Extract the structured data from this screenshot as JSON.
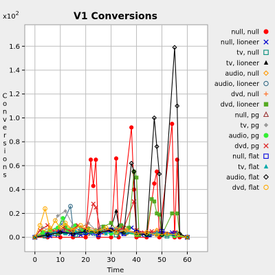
{
  "chart_data": {
    "type": "line",
    "title": "V1 Conversions",
    "xlabel": "Time",
    "ylabel": "Conversions",
    "y_multiplier": "x10",
    "y_multiplier_exp": "2",
    "xlim": [
      -4,
      68
    ],
    "ylim": [
      -0.12,
      1.78
    ],
    "xticks": [
      0,
      10,
      20,
      30,
      40,
      50,
      60
    ],
    "yticks": [
      0.0,
      0.2,
      0.4,
      0.6,
      0.8,
      1.0,
      1.2,
      1.4,
      1.6
    ],
    "ytick_labels": [
      "0.0",
      "0.2",
      "0.4",
      "0.6",
      "0.8",
      "1.0",
      "1.2",
      "1.4",
      "1.6"
    ],
    "grid": true,
    "legend_position": "right",
    "series": [
      {
        "name": "null, null",
        "color": "#ff0000",
        "marker": "circle-filled",
        "points": [
          [
            0,
            0
          ],
          [
            5,
            0
          ],
          [
            10,
            0
          ],
          [
            15,
            0
          ],
          [
            20,
            0
          ],
          [
            22,
            0.65
          ],
          [
            23,
            0.43
          ],
          [
            24,
            0.65
          ],
          [
            25,
            0
          ],
          [
            30,
            0
          ],
          [
            32,
            0.66
          ],
          [
            33,
            0
          ],
          [
            38,
            0.92
          ],
          [
            39,
            0.4
          ],
          [
            40,
            0
          ],
          [
            44,
            0
          ],
          [
            47,
            0.45
          ],
          [
            48,
            0.55
          ],
          [
            49,
            0
          ],
          [
            54,
            0.95
          ],
          [
            55,
            0
          ],
          [
            56,
            0.65
          ],
          [
            57,
            0
          ],
          [
            60,
            0
          ]
        ]
      },
      {
        "name": "null, lioneer",
        "color": "#0000cc",
        "marker": "x",
        "points": [
          [
            0,
            0
          ],
          [
            3,
            0.02
          ],
          [
            6,
            0.01
          ],
          [
            9,
            0.02
          ],
          [
            12,
            0.05
          ],
          [
            14,
            0.03
          ],
          [
            18,
            0.02
          ],
          [
            22,
            0.03
          ],
          [
            26,
            0.06
          ],
          [
            30,
            0.04
          ],
          [
            33,
            0.06
          ],
          [
            35,
            0.03
          ],
          [
            38,
            0.08
          ],
          [
            42,
            0.02
          ],
          [
            46,
            0.03
          ],
          [
            50,
            0.02
          ],
          [
            54,
            0.04
          ],
          [
            56,
            0.02
          ],
          [
            60,
            0
          ]
        ]
      },
      {
        "name": "tv, null",
        "color": "#008c7a",
        "marker": "square-open",
        "points": [
          [
            0,
            0
          ],
          [
            4,
            0.01
          ],
          [
            8,
            0.03
          ],
          [
            12,
            0.04
          ],
          [
            16,
            0.02
          ],
          [
            20,
            0.05
          ],
          [
            24,
            0.03
          ],
          [
            28,
            0.06
          ],
          [
            32,
            0.02
          ],
          [
            36,
            0.04
          ],
          [
            40,
            0.03
          ],
          [
            44,
            0.02
          ],
          [
            48,
            0.03
          ],
          [
            52,
            0.01
          ],
          [
            56,
            0.02
          ],
          [
            60,
            0
          ]
        ]
      },
      {
        "name": "tv, lioneer",
        "color": "#000000",
        "marker": "triangle-filled",
        "points": [
          [
            0,
            0
          ],
          [
            5,
            0.02
          ],
          [
            10,
            0.04
          ],
          [
            15,
            0.06
          ],
          [
            20,
            0.03
          ],
          [
            25,
            0.05
          ],
          [
            30,
            0.08
          ],
          [
            32,
            0.22
          ],
          [
            33,
            0.1
          ],
          [
            36,
            0.04
          ],
          [
            40,
            0.05
          ],
          [
            45,
            0.02
          ],
          [
            50,
            0.03
          ],
          [
            55,
            0.02
          ],
          [
            60,
            0
          ]
        ]
      },
      {
        "name": "audio, null",
        "color": "#ff9900",
        "marker": "diamond-open",
        "points": [
          [
            0,
            0
          ],
          [
            3,
            0.05
          ],
          [
            6,
            0.08
          ],
          [
            9,
            0.04
          ],
          [
            12,
            0.1
          ],
          [
            15,
            0.06
          ],
          [
            18,
            0.05
          ],
          [
            21,
            0.03
          ],
          [
            24,
            0.06
          ],
          [
            27,
            0.04
          ],
          [
            30,
            0.05
          ],
          [
            33,
            0.07
          ],
          [
            36,
            0.03
          ],
          [
            40,
            0.04
          ],
          [
            44,
            0.02
          ],
          [
            48,
            0.06
          ],
          [
            52,
            0.03
          ],
          [
            56,
            0.04
          ],
          [
            60,
            0
          ]
        ]
      },
      {
        "name": "audio, lioneer",
        "color": "#336b87",
        "marker": "circle-open",
        "points": [
          [
            0,
            0
          ],
          [
            4,
            0.03
          ],
          [
            8,
            0.06
          ],
          [
            11,
            0.12
          ],
          [
            14,
            0.26
          ],
          [
            15,
            0.08
          ],
          [
            18,
            0.06
          ],
          [
            22,
            0.04
          ],
          [
            26,
            0.08
          ],
          [
            30,
            0.05
          ],
          [
            34,
            0.1
          ],
          [
            36,
            0.04
          ],
          [
            40,
            0.05
          ],
          [
            44,
            0.02
          ],
          [
            48,
            0.03
          ],
          [
            52,
            0.02
          ],
          [
            56,
            0.03
          ],
          [
            60,
            0
          ]
        ]
      },
      {
        "name": "dvd, null",
        "color": "#ff7733",
        "marker": "plus",
        "points": [
          [
            0,
            0
          ],
          [
            4,
            0.04
          ],
          [
            8,
            0.06
          ],
          [
            12,
            0.05
          ],
          [
            16,
            0.08
          ],
          [
            20,
            0.1
          ],
          [
            24,
            0.06
          ],
          [
            28,
            0.05
          ],
          [
            32,
            0.08
          ],
          [
            36,
            0.06
          ],
          [
            40,
            0.04
          ],
          [
            44,
            0.03
          ],
          [
            48,
            0.05
          ],
          [
            52,
            0.02
          ],
          [
            56,
            0.03
          ],
          [
            60,
            0
          ]
        ]
      },
      {
        "name": "dvd, lioneer",
        "color": "#55aa22",
        "marker": "square-filled",
        "points": [
          [
            0,
            0
          ],
          [
            3,
            0.02
          ],
          [
            6,
            0.05
          ],
          [
            9,
            0.03
          ],
          [
            12,
            0.08
          ],
          [
            15,
            0.06
          ],
          [
            18,
            0.04
          ],
          [
            21,
            0.07
          ],
          [
            24,
            0.05
          ],
          [
            27,
            0.09
          ],
          [
            30,
            0.12
          ],
          [
            32,
            0.06
          ],
          [
            34,
            0.1
          ],
          [
            37,
            0.08
          ],
          [
            39,
            0.55
          ],
          [
            40,
            0.5
          ],
          [
            41,
            0.02
          ],
          [
            44,
            0.03
          ],
          [
            46,
            0.32
          ],
          [
            47,
            0.3
          ],
          [
            48,
            0.2
          ],
          [
            49,
            0.19
          ],
          [
            50,
            0.02
          ],
          [
            54,
            0.2
          ],
          [
            56,
            0.2
          ],
          [
            57,
            0.02
          ],
          [
            60,
            0
          ]
        ]
      },
      {
        "name": "null, pg",
        "color": "#993333",
        "marker": "triangle-open",
        "points": [
          [
            0,
            0
          ],
          [
            5,
            0.03
          ],
          [
            10,
            0.05
          ],
          [
            15,
            0.04
          ],
          [
            20,
            0.06
          ],
          [
            25,
            0.05
          ],
          [
            30,
            0.07
          ],
          [
            35,
            0.04
          ],
          [
            40,
            0.05
          ],
          [
            45,
            0.03
          ],
          [
            50,
            0.04
          ],
          [
            55,
            0.02
          ],
          [
            60,
            0
          ]
        ]
      },
      {
        "name": "tv, pg",
        "color": "#999999",
        "marker": "diamond-filled",
        "points": [
          [
            0,
            0
          ],
          [
            3,
            0.08
          ],
          [
            6,
            0.06
          ],
          [
            9,
            0.18
          ],
          [
            12,
            0.22
          ],
          [
            15,
            0.1
          ],
          [
            18,
            0.08
          ],
          [
            21,
            0.12
          ],
          [
            24,
            0.06
          ],
          [
            27,
            0.05
          ],
          [
            30,
            0.08
          ],
          [
            34,
            0.06
          ],
          [
            38,
            0.04
          ],
          [
            42,
            0.03
          ],
          [
            46,
            0.02
          ],
          [
            50,
            0.03
          ],
          [
            55,
            0.02
          ],
          [
            60,
            0
          ]
        ]
      },
      {
        "name": "audio, pg",
        "color": "#33ee33",
        "marker": "circle-filled",
        "points": [
          [
            0,
            0
          ],
          [
            3,
            0.04
          ],
          [
            6,
            0.06
          ],
          [
            9,
            0.08
          ],
          [
            11,
            0.16
          ],
          [
            13,
            0.06
          ],
          [
            16,
            0.1
          ],
          [
            19,
            0.06
          ],
          [
            22,
            0.04
          ],
          [
            26,
            0.05
          ],
          [
            30,
            0.03
          ],
          [
            35,
            0.04
          ],
          [
            40,
            0.02
          ],
          [
            45,
            0.03
          ],
          [
            50,
            0.02
          ],
          [
            55,
            0.01
          ],
          [
            60,
            0
          ]
        ]
      },
      {
        "name": "dvd, pg",
        "color": "#dd2222",
        "marker": "x",
        "points": [
          [
            0,
            0
          ],
          [
            2,
            0.06
          ],
          [
            5,
            0.1
          ],
          [
            8,
            0.04
          ],
          [
            11,
            0.08
          ],
          [
            14,
            0.05
          ],
          [
            17,
            0.1
          ],
          [
            20,
            0.06
          ],
          [
            23,
            0.28
          ],
          [
            24,
            0.25
          ],
          [
            26,
            0.04
          ],
          [
            29,
            0.06
          ],
          [
            32,
            0.05
          ],
          [
            35,
            0.08
          ],
          [
            39,
            0.3
          ],
          [
            40,
            0.06
          ],
          [
            43,
            0.04
          ],
          [
            46,
            0.05
          ],
          [
            50,
            0.03
          ],
          [
            55,
            0.04
          ],
          [
            60,
            0
          ]
        ]
      },
      {
        "name": "null, flat",
        "color": "#0000dd",
        "marker": "square-open",
        "points": [
          [
            0,
            0
          ],
          [
            5,
            0.02
          ],
          [
            10,
            0.05
          ],
          [
            15,
            0.03
          ],
          [
            20,
            0.04
          ],
          [
            25,
            0.02
          ],
          [
            30,
            0.06
          ],
          [
            35,
            0.03
          ],
          [
            40,
            0.04
          ],
          [
            45,
            0.02
          ],
          [
            50,
            0.05
          ],
          [
            55,
            0.03
          ],
          [
            60,
            0
          ]
        ]
      },
      {
        "name": "tv, flat",
        "color": "#00aaaa",
        "marker": "triangle-filled",
        "points": [
          [
            0,
            0
          ],
          [
            4,
            0.02
          ],
          [
            8,
            0.04
          ],
          [
            12,
            0.03
          ],
          [
            16,
            0.05
          ],
          [
            20,
            0.04
          ],
          [
            24,
            0.06
          ],
          [
            28,
            0.03
          ],
          [
            32,
            0.05
          ],
          [
            36,
            0.04
          ],
          [
            40,
            0.03
          ],
          [
            44,
            0.02
          ],
          [
            48,
            0.04
          ],
          [
            52,
            0.02
          ],
          [
            56,
            0.03
          ],
          [
            60,
            0
          ]
        ]
      },
      {
        "name": "audio, flat",
        "color": "#000000",
        "marker": "diamond-open",
        "points": [
          [
            0,
            0
          ],
          [
            5,
            0.02
          ],
          [
            10,
            0.04
          ],
          [
            15,
            0.03
          ],
          [
            20,
            0.05
          ],
          [
            25,
            0.04
          ],
          [
            30,
            0.06
          ],
          [
            35,
            0.04
          ],
          [
            38,
            0.62
          ],
          [
            39,
            0.55
          ],
          [
            40,
            0.03
          ],
          [
            44,
            0.02
          ],
          [
            47,
            1.0
          ],
          [
            48,
            0.76
          ],
          [
            49,
            0.53
          ],
          [
            50,
            0.02
          ],
          [
            55,
            1.59
          ],
          [
            56,
            1.1
          ],
          [
            57,
            0.03
          ],
          [
            60,
            0
          ]
        ]
      },
      {
        "name": "dvd, flat",
        "color": "#ffaa00",
        "marker": "circle-open",
        "points": [
          [
            0,
            0
          ],
          [
            2,
            0.1
          ],
          [
            4,
            0.24
          ],
          [
            6,
            0.06
          ],
          [
            8,
            0.14
          ],
          [
            10,
            0.08
          ],
          [
            12,
            0.12
          ],
          [
            15,
            0.06
          ],
          [
            18,
            0.1
          ],
          [
            21,
            0.06
          ],
          [
            24,
            0.05
          ],
          [
            28,
            0.08
          ],
          [
            32,
            0.04
          ],
          [
            36,
            0.06
          ],
          [
            40,
            0.03
          ],
          [
            44,
            0.04
          ],
          [
            48,
            0.02
          ],
          [
            52,
            0.03
          ],
          [
            56,
            0.02
          ],
          [
            60,
            0
          ]
        ]
      }
    ]
  }
}
